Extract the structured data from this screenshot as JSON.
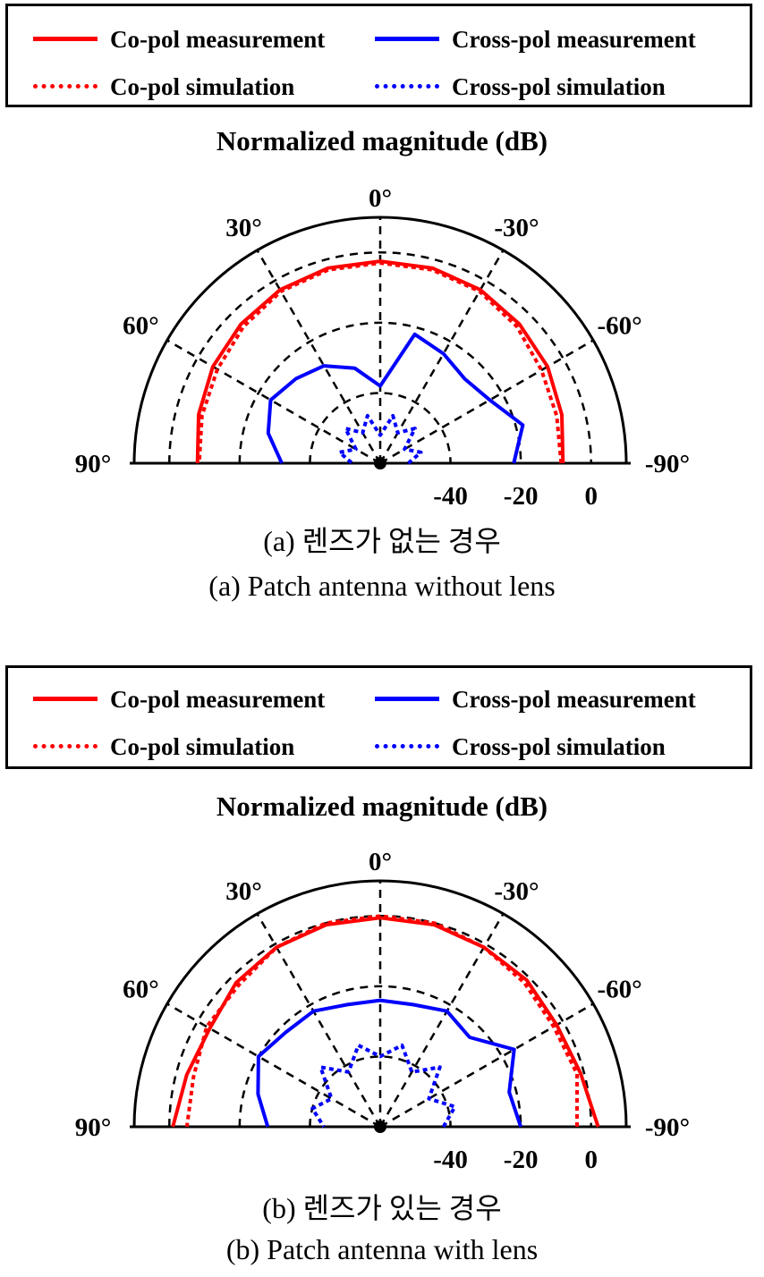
{
  "legend": {
    "co_meas": "Co-pol measurement",
    "cross_meas": "Cross-pol measurement",
    "co_sim": "Co-pol simulation",
    "cross_sim": "Cross-pol simulation"
  },
  "colors": {
    "co": "#ff0000",
    "cross": "#0000ff"
  },
  "panels": [
    {
      "caption_ko": "(a) 렌즈가 없는 경우",
      "caption_en": "(a) Patch antenna without lens"
    },
    {
      "caption_ko": "(b) 렌즈가 있는 경우",
      "caption_en": "(b) Patch antenna with lens"
    }
  ],
  "chart_data": [
    {
      "type": "polar",
      "title": "Normalized magnitude (dB)",
      "angle_ticks": [
        "0°",
        "30°",
        "-30°",
        "60°",
        "-60°",
        "90°",
        "-90°"
      ],
      "radial_ticks": [
        "-40",
        "-20",
        "0"
      ],
      "radial_range_db": [
        -60,
        10
      ],
      "radial_tick_values": [
        -40,
        -20,
        0
      ],
      "grid": true,
      "legend_position": "top",
      "angles_deg": [
        -90,
        -75,
        -60,
        -45,
        -30,
        -15,
        0,
        15,
        30,
        45,
        60,
        75,
        90
      ],
      "series": [
        {
          "name": "Co-pol measurement",
          "style": "solid",
          "color": "#ff0000",
          "values": [
            -8,
            -6.5,
            -5,
            -4,
            -3,
            -2.5,
            -2.5,
            -2.5,
            -3,
            -4,
            -5,
            -6.5,
            -8
          ]
        },
        {
          "name": "Co-pol simulation",
          "style": "dotted",
          "color": "#ff0000",
          "values": [
            -8.5,
            -8,
            -7,
            -5,
            -3.5,
            -3,
            -3,
            -3,
            -3.5,
            -5,
            -6.5,
            -7.5,
            -8.5
          ]
        },
        {
          "name": "Cross-pol measurement",
          "style": "solid",
          "color": "#0000ff",
          "values": [
            -22,
            -18,
            -24,
            -26,
            -24,
            -22,
            -38,
            -32,
            -28,
            -26,
            -24,
            -27,
            -32
          ]
        },
        {
          "name": "Cross-pol simulation",
          "style": "dotted",
          "color": "#0000ff",
          "values": [
            -52,
            -48,
            -52,
            -46,
            -50,
            -46,
            -52,
            -46,
            -50,
            -46,
            -52,
            -48,
            -52
          ]
        }
      ]
    },
    {
      "type": "polar",
      "title": "Normalized magnitude (dB)",
      "angle_ticks": [
        "0°",
        "30°",
        "-30°",
        "60°",
        "-60°",
        "90°",
        "-90°"
      ],
      "radial_ticks": [
        "-40",
        "-20",
        "0"
      ],
      "radial_range_db": [
        -60,
        10
      ],
      "radial_tick_values": [
        -40,
        -20,
        0
      ],
      "grid": true,
      "legend_position": "top",
      "angles_deg": [
        -90,
        -75,
        -60,
        -45,
        -30,
        -15,
        0,
        15,
        30,
        45,
        60,
        75,
        90
      ],
      "series": [
        {
          "name": "Co-pol measurement",
          "style": "solid",
          "color": "#ff0000",
          "values": [
            2,
            -1,
            -2,
            -1,
            -1,
            -0.5,
            -0.5,
            -0.5,
            -1,
            -2,
            -4,
            -3,
            -1
          ]
        },
        {
          "name": "Co-pol simulation",
          "style": "dotted",
          "color": "#ff0000",
          "values": [
            -4,
            -2,
            -3,
            -2,
            -1,
            0,
            0,
            0,
            -1,
            -3,
            -3,
            -5,
            -5
          ]
        },
        {
          "name": "Cross-pol measurement",
          "style": "solid",
          "color": "#0000ff",
          "values": [
            -20,
            -22,
            -16,
            -24,
            -22,
            -24,
            -24,
            -24,
            -22,
            -22,
            -20,
            -24,
            -28
          ]
        },
        {
          "name": "Cross-pol simulation",
          "style": "dotted",
          "color": "#0000ff",
          "values": [
            -42,
            -38,
            -44,
            -36,
            -42,
            -36,
            -40,
            -36,
            -42,
            -36,
            -44,
            -40,
            -44
          ]
        }
      ]
    }
  ]
}
